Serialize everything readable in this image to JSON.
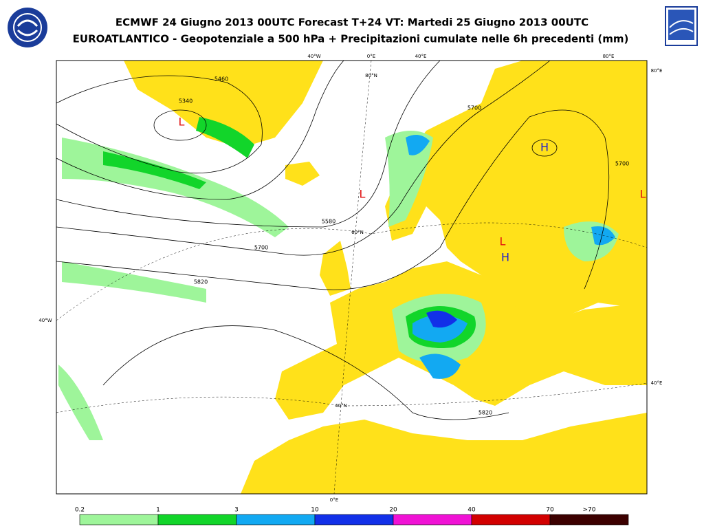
{
  "header": {
    "title": "ECMWF 24 Giugno 2013 00UTC Forecast T+24 VT: Martedi 25 Giugno 2013 00UTC",
    "subtitle": "EUROATLANTICO - Geopotenziale a 500 hPa + Precipitazioni cumulate nelle 6h precedenti (mm)"
  },
  "map": {
    "coordinate_labels": [
      "40°W",
      "0°E",
      "40°E",
      "80°E",
      "80°E",
      "40°W",
      "40°E",
      "0°E",
      "80°N",
      "60°N",
      "40°N"
    ],
    "contour_labels": [
      "5460",
      "5340",
      "5700",
      "5580",
      "5700",
      "5820",
      "5700",
      "5820"
    ],
    "pressure_centers": [
      "L",
      "L",
      "L",
      "H",
      "H",
      "L"
    ]
  },
  "legend": {
    "labels": [
      "0.2",
      "1",
      "3",
      "10",
      "20",
      "40",
      "70",
      ">70"
    ],
    "colors": [
      "#9ef59a",
      "#12d52a",
      "#12a9f2",
      "#1230e8",
      "#f012d5",
      "#d20000",
      "#3c0000"
    ]
  }
}
